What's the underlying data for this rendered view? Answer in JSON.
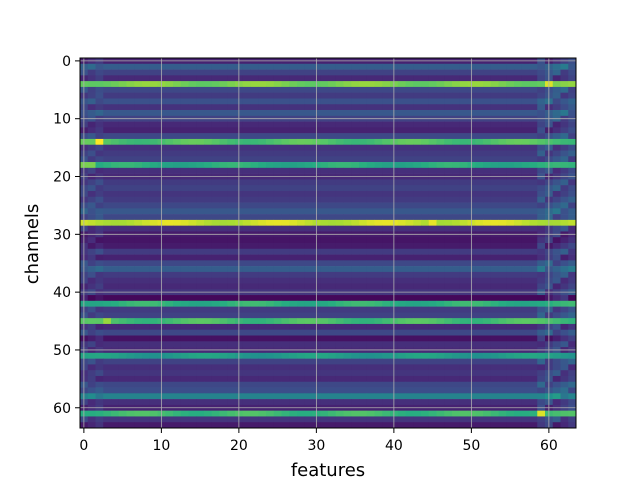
{
  "chart_data": {
    "type": "heatmap",
    "title": "",
    "xlabel": "features",
    "ylabel": "channels",
    "n_features": 64,
    "n_channels": 64,
    "xlim": [
      -0.5,
      63.5
    ],
    "ylim": [
      63.5,
      -0.5
    ],
    "x_ticks": [
      0,
      10,
      20,
      30,
      40,
      50,
      60
    ],
    "y_ticks": [
      0,
      10,
      20,
      30,
      40,
      50,
      60
    ],
    "x_tick_labels": [
      "0",
      "10",
      "20",
      "30",
      "40",
      "50",
      "60"
    ],
    "y_tick_labels": [
      "0",
      "10",
      "20",
      "30",
      "40",
      "50",
      "60"
    ],
    "grid": true,
    "colormap": "viridis",
    "row_levels": [
      0.1,
      0.3,
      0.2,
      0.12,
      0.8,
      0.22,
      0.18,
      0.25,
      0.15,
      0.28,
      0.2,
      0.12,
      0.1,
      0.22,
      0.72,
      0.15,
      0.18,
      0.2,
      0.62,
      0.14,
      0.12,
      0.18,
      0.2,
      0.16,
      0.18,
      0.22,
      0.28,
      0.22,
      0.92,
      0.14,
      0.08,
      0.06,
      0.08,
      0.18,
      0.1,
      0.22,
      0.3,
      0.18,
      0.14,
      0.12,
      0.16,
      0.02,
      0.64,
      0.18,
      0.2,
      0.7,
      0.12,
      0.22,
      0.05,
      0.14,
      0.12,
      0.55,
      0.2,
      0.14,
      0.16,
      0.12,
      0.22,
      0.24,
      0.45,
      0.14,
      0.1,
      0.68,
      0.16,
      0.08
    ],
    "bright_rows": [
      4,
      14,
      18,
      28,
      42,
      45,
      51,
      61
    ],
    "bright_spots": [
      {
        "row": 14,
        "col": 2,
        "value": 1.0
      },
      {
        "row": 18,
        "col": 0,
        "value": 0.8
      },
      {
        "row": 18,
        "col": 1,
        "value": 0.8
      },
      {
        "row": 28,
        "col": 45,
        "value": 0.97
      },
      {
        "row": 4,
        "col": 60,
        "value": 0.95
      },
      {
        "row": 61,
        "col": 59,
        "value": 0.95
      },
      {
        "row": 45,
        "col": 3,
        "value": 0.85
      }
    ]
  }
}
